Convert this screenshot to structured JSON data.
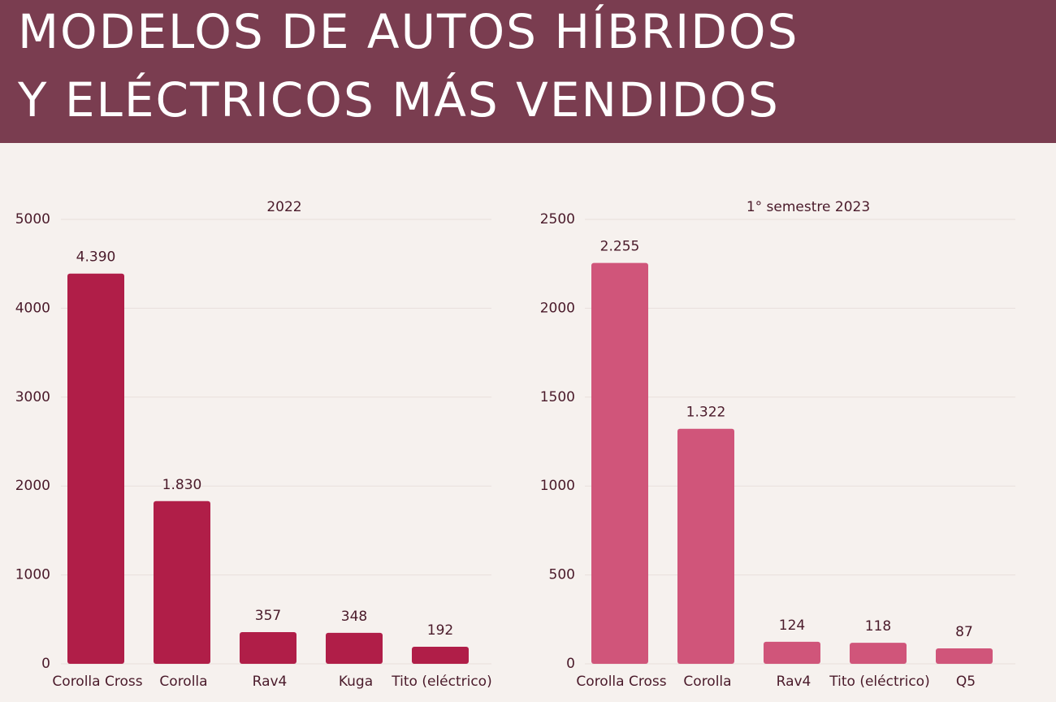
{
  "title": [
    "MODELOS DE AUTOS HÍBRIDOS",
    "Y ELÉCTRICOS MÁS VENDIDOS"
  ],
  "chart_data": [
    {
      "type": "bar",
      "subtitle": "2022",
      "categories": [
        "Corolla Cross",
        "Corolla",
        "Rav4",
        "Kuga",
        "Tito (eléctrico)"
      ],
      "values": [
        4390,
        1830,
        357,
        348,
        192
      ],
      "value_labels": [
        "4.390",
        "1.830",
        "357",
        "348",
        "192"
      ],
      "color": "#b01e48",
      "ylim": [
        0,
        5000
      ],
      "yticks": [
        0,
        1000,
        2000,
        3000,
        4000,
        5000
      ],
      "grid": true
    },
    {
      "type": "bar",
      "subtitle": "1° semestre 2023",
      "categories": [
        "Corolla Cross",
        "Corolla",
        "Rav4",
        "Tito (eléctrico)",
        "Q5"
      ],
      "values": [
        2255,
        1322,
        124,
        118,
        87
      ],
      "value_labels": [
        "2.255",
        "1.322",
        "124",
        "118",
        "87"
      ],
      "color": "#d0557a",
      "ylim": [
        0,
        2500
      ],
      "yticks": [
        0,
        500,
        1000,
        1500,
        2000,
        2500
      ],
      "grid": true
    }
  ]
}
